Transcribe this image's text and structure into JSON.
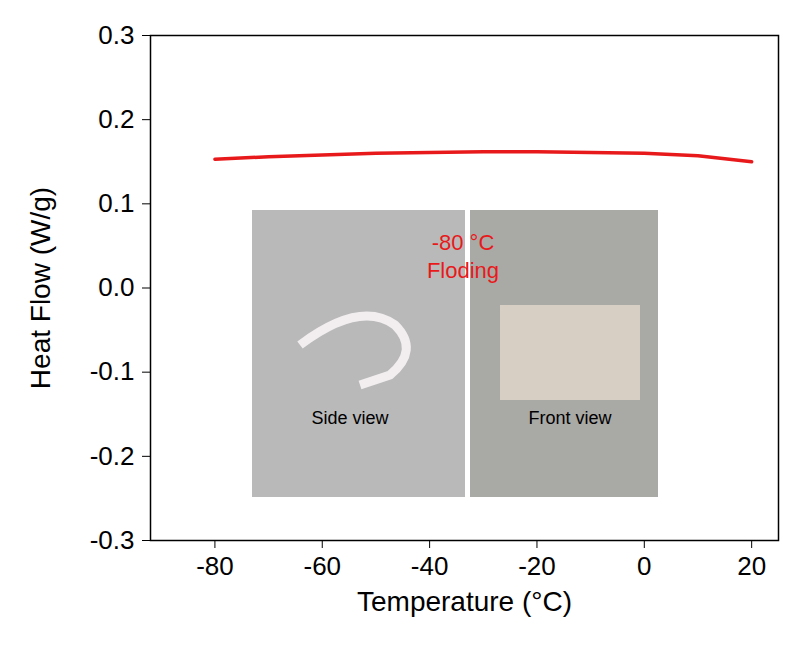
{
  "chart_data": {
    "type": "line",
    "x_label": "Temperature (°C)",
    "y_label": "Heat Flow (W/g)",
    "x": [
      -80,
      -70,
      -60,
      -50,
      -40,
      -30,
      -20,
      -10,
      0,
      10,
      20
    ],
    "values": [
      0.153,
      0.156,
      0.158,
      0.16,
      0.161,
      0.162,
      0.162,
      0.161,
      0.16,
      0.157,
      0.15
    ],
    "color": "#e8191b",
    "xlim": [
      -92,
      25
    ],
    "xticks": [
      -80,
      -60,
      -40,
      -20,
      0,
      20
    ],
    "ylim": [
      -0.3,
      0.3
    ],
    "yticks": [
      -0.3,
      -0.2,
      -0.1,
      {
        "value": 0,
        "label": "0.0"
      },
      0.1,
      0.2,
      0.3
    ],
    "grid": false,
    "annotations": [
      "-80 °C",
      "Floding",
      "Side view",
      "Front view"
    ]
  }
}
